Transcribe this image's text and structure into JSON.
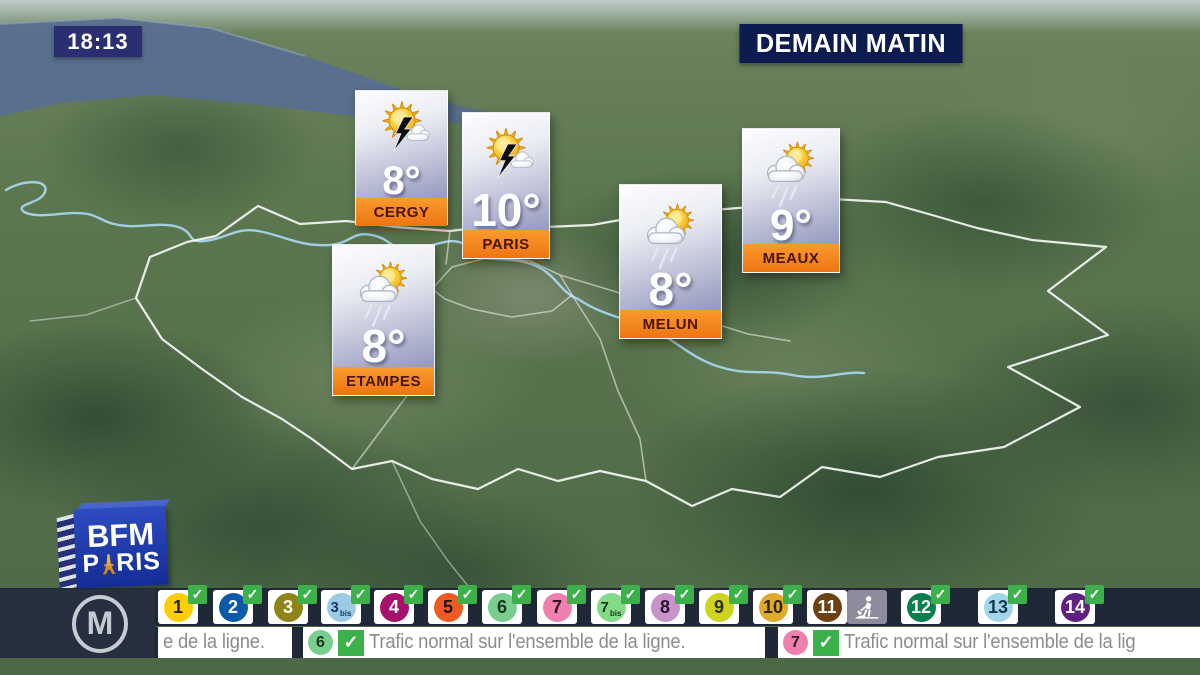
{
  "clock": {
    "time": "18:13"
  },
  "headline": {
    "title": "DEMAIN MATIN"
  },
  "forecasts": [
    {
      "city": "CERGY",
      "temp": "8°",
      "condition": "thunderstorm",
      "icon": "sun-lightning-icon"
    },
    {
      "city": "PARIS",
      "temp": "10°",
      "condition": "thunderstorm",
      "icon": "sun-lightning-icon"
    },
    {
      "city": "MEAUX",
      "temp": "9°",
      "condition": "sun-rain",
      "icon": "sun-rain-icon"
    },
    {
      "city": "MELUN",
      "temp": "8°",
      "condition": "sun-rain",
      "icon": "sun-rain-icon"
    },
    {
      "city": "ETAMPES",
      "temp": "8°",
      "condition": "sun-rain",
      "icon": "sun-rain-icon"
    }
  ],
  "branding": {
    "bfm_line1": "BFM",
    "bfm_paris_prefix": "P",
    "bfm_paris_suffix": "RIS",
    "metro_symbol": "M"
  },
  "colors": {
    "check_green": "#3CB14A",
    "works_grey": "#8D8B9C",
    "bar_dark": "#1E2836",
    "card_orange": "#EE7512",
    "headline_navy": "#0D1C4E",
    "clock_indigo": "#2A2F72",
    "bfm_blue": "#1d3aa8"
  },
  "metro_lines": [
    {
      "num": "1",
      "suffix": "",
      "bg": "#FFCE00",
      "fg": "#1F1F1F",
      "status": "ok"
    },
    {
      "num": "2",
      "suffix": "",
      "bg": "#0B5AA9",
      "fg": "#FFFFFF",
      "status": "ok"
    },
    {
      "num": "3",
      "suffix": "",
      "bg": "#8E8516",
      "fg": "#FFFFFF",
      "status": "ok"
    },
    {
      "num": "3",
      "suffix": "bis",
      "bg": "#9BCCE4",
      "fg": "#16366B",
      "status": "ok"
    },
    {
      "num": "4",
      "suffix": "",
      "bg": "#A8106E",
      "fg": "#FFFFFF",
      "status": "ok"
    },
    {
      "num": "5",
      "suffix": "",
      "bg": "#EE5A22",
      "fg": "#20150F",
      "status": "ok"
    },
    {
      "num": "6",
      "suffix": "",
      "bg": "#79CE8F",
      "fg": "#173A1F",
      "status": "ok"
    },
    {
      "num": "7",
      "suffix": "",
      "bg": "#EF7FAE",
      "fg": "#35121F",
      "status": "ok"
    },
    {
      "num": "7",
      "suffix": "bis",
      "bg": "#84DB87",
      "fg": "#173A1F",
      "status": "ok"
    },
    {
      "num": "8",
      "suffix": "",
      "bg": "#C793C9",
      "fg": "#2A1230",
      "status": "ok"
    },
    {
      "num": "9",
      "suffix": "",
      "bg": "#CFD51F",
      "fg": "#2E2E10",
      "status": "ok"
    },
    {
      "num": "10",
      "suffix": "",
      "bg": "#DFAA28",
      "fg": "#2E2208",
      "status": "ok"
    },
    {
      "num": "11",
      "suffix": "",
      "bg": "#6C4213",
      "fg": "#FFFFFF",
      "status": "works"
    },
    {
      "num": "12",
      "suffix": "",
      "bg": "#0B7E4E",
      "fg": "#FFFFFF",
      "status": "ok"
    },
    {
      "num": "13",
      "suffix": "",
      "bg": "#A3D6E8",
      "fg": "#123A52",
      "status": "ok"
    },
    {
      "num": "14",
      "suffix": "",
      "bg": "#5F2283",
      "fg": "#FFFFFF",
      "status": "ok"
    }
  ],
  "ticker_segments": [
    {
      "line": null,
      "text": "e de la ligne."
    },
    {
      "line": {
        "num": "6",
        "bg": "#79CE8F",
        "fg": "#173A1F"
      },
      "text": "Trafic normal sur l'ensemble de la ligne."
    },
    {
      "line": {
        "num": "7",
        "bg": "#EF7FAE",
        "fg": "#35121F"
      },
      "text": "Trafic normal sur l'ensemble de la lig"
    }
  ]
}
